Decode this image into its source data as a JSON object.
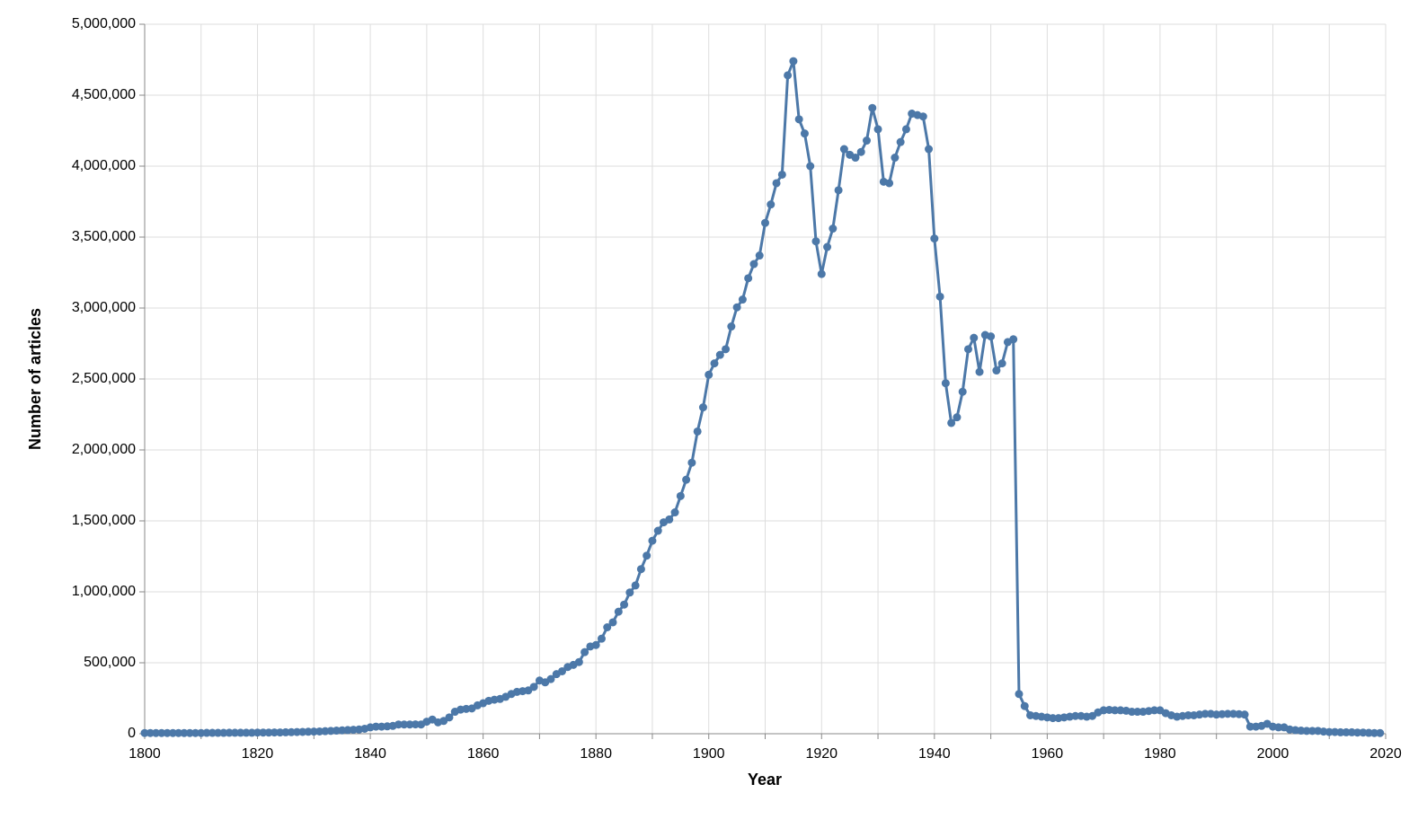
{
  "chart_data": {
    "type": "line",
    "x_label": "Year",
    "y_label": "Number of articles",
    "color": "#4c78a8",
    "grid": true,
    "x": [
      1800,
      1801,
      1802,
      1803,
      1804,
      1805,
      1806,
      1807,
      1808,
      1809,
      1810,
      1811,
      1812,
      1813,
      1814,
      1815,
      1816,
      1817,
      1818,
      1819,
      1820,
      1821,
      1822,
      1823,
      1824,
      1825,
      1826,
      1827,
      1828,
      1829,
      1830,
      1831,
      1832,
      1833,
      1834,
      1835,
      1836,
      1837,
      1838,
      1839,
      1840,
      1841,
      1842,
      1843,
      1844,
      1845,
      1846,
      1847,
      1848,
      1849,
      1850,
      1851,
      1852,
      1853,
      1854,
      1855,
      1856,
      1857,
      1858,
      1859,
      1860,
      1861,
      1862,
      1863,
      1864,
      1865,
      1866,
      1867,
      1868,
      1869,
      1870,
      1871,
      1872,
      1873,
      1874,
      1875,
      1876,
      1877,
      1878,
      1879,
      1880,
      1881,
      1882,
      1883,
      1884,
      1885,
      1886,
      1887,
      1888,
      1889,
      1890,
      1891,
      1892,
      1893,
      1894,
      1895,
      1896,
      1897,
      1898,
      1899,
      1900,
      1901,
      1902,
      1903,
      1904,
      1905,
      1906,
      1907,
      1908,
      1909,
      1910,
      1911,
      1912,
      1913,
      1914,
      1915,
      1916,
      1917,
      1918,
      1919,
      1920,
      1921,
      1922,
      1923,
      1924,
      1925,
      1926,
      1927,
      1928,
      1929,
      1930,
      1931,
      1932,
      1933,
      1934,
      1935,
      1936,
      1937,
      1938,
      1939,
      1940,
      1941,
      1942,
      1943,
      1944,
      1945,
      1946,
      1947,
      1948,
      1949,
      1950,
      1951,
      1952,
      1953,
      1954,
      1955,
      1956,
      1957,
      1958,
      1959,
      1960,
      1961,
      1962,
      1963,
      1964,
      1965,
      1966,
      1967,
      1968,
      1969,
      1970,
      1971,
      1972,
      1973,
      1974,
      1975,
      1976,
      1977,
      1978,
      1979,
      1980,
      1981,
      1982,
      1983,
      1984,
      1985,
      1986,
      1987,
      1988,
      1989,
      1990,
      1991,
      1992,
      1993,
      1994,
      1995,
      1996,
      1997,
      1998,
      1999,
      2000,
      2001,
      2002,
      2003,
      2004,
      2005,
      2006,
      2007,
      2008,
      2009,
      2010,
      2011,
      2012,
      2013,
      2014,
      2015,
      2016,
      2017,
      2018,
      2019
    ],
    "values": [
      5000,
      5000,
      5000,
      5000,
      5000,
      5000,
      5000,
      5000,
      5000,
      5000,
      5000,
      6000,
      6000,
      6000,
      6000,
      7000,
      7000,
      7000,
      7000,
      7000,
      8000,
      8000,
      8000,
      9000,
      9000,
      10000,
      11000,
      12000,
      13000,
      14000,
      15000,
      16000,
      18000,
      20000,
      22000,
      24000,
      26000,
      28000,
      30000,
      35000,
      45000,
      50000,
      50000,
      52000,
      55000,
      65000,
      65000,
      65000,
      66000,
      65000,
      85000,
      100000,
      80000,
      90000,
      115000,
      155000,
      170000,
      175000,
      178000,
      200000,
      215000,
      232000,
      240000,
      245000,
      260000,
      280000,
      295000,
      300000,
      305000,
      330000,
      375000,
      362000,
      385000,
      420000,
      440000,
      470000,
      485000,
      505000,
      575000,
      615000,
      625000,
      670000,
      750000,
      785000,
      860000,
      910000,
      995000,
      1045000,
      1160000,
      1255000,
      1360000,
      1430000,
      1490000,
      1510000,
      1560000,
      1675000,
      1790000,
      1910000,
      2130000,
      2300000,
      2530000,
      2610000,
      2670000,
      2710000,
      2870000,
      3005000,
      3060000,
      3210000,
      3310000,
      3370000,
      3600000,
      3730000,
      3880000,
      3940000,
      4640000,
      4740000,
      4330000,
      4230000,
      4000000,
      3470000,
      3240000,
      3430000,
      3560000,
      3830000,
      4120000,
      4080000,
      4060000,
      4100000,
      4180000,
      4410000,
      4260000,
      3890000,
      3880000,
      4060000,
      4170000,
      4260000,
      4370000,
      4360000,
      4350000,
      4120000,
      3490000,
      3080000,
      2470000,
      2190000,
      2230000,
      2410000,
      2710000,
      2790000,
      2550000,
      2810000,
      2800000,
      2560000,
      2610000,
      2760000,
      2780000,
      280000,
      195000,
      130000,
      125000,
      120000,
      115000,
      110000,
      110000,
      115000,
      120000,
      125000,
      125000,
      120000,
      125000,
      150000,
      165000,
      168000,
      165000,
      165000,
      162000,
      155000,
      155000,
      155000,
      160000,
      165000,
      165000,
      145000,
      130000,
      120000,
      125000,
      130000,
      130000,
      135000,
      140000,
      140000,
      135000,
      138000,
      140000,
      140000,
      138000,
      135000,
      50000,
      50000,
      55000,
      70000,
      50000,
      45000,
      45000,
      30000,
      25000,
      22000,
      20000,
      20000,
      20000,
      15000,
      12000,
      12000,
      10000,
      10000,
      10000,
      8000,
      8000,
      6000,
      5000,
      5000
    ],
    "xlim": [
      1800,
      2020
    ],
    "xticks": [
      1800,
      1820,
      1840,
      1860,
      1880,
      1900,
      1920,
      1940,
      1960,
      1980,
      2000,
      2020
    ],
    "ylim": [
      0,
      5000000
    ],
    "yticks": [
      {
        "value": 0,
        "label": "0"
      },
      {
        "value": 500000,
        "label": "500,000"
      },
      {
        "value": 1000000,
        "label": "1,000,000"
      },
      {
        "value": 1500000,
        "label": "1,500,000"
      },
      {
        "value": 2000000,
        "label": "2,000,000"
      },
      {
        "value": 2500000,
        "label": "2,500,000"
      },
      {
        "value": 3000000,
        "label": "3,000,000"
      },
      {
        "value": 3500000,
        "label": "3,500,000"
      },
      {
        "value": 4000000,
        "label": "4,000,000"
      },
      {
        "value": 4500000,
        "label": "4,500,000"
      },
      {
        "value": 5000000,
        "label": "5,000,000"
      }
    ]
  }
}
